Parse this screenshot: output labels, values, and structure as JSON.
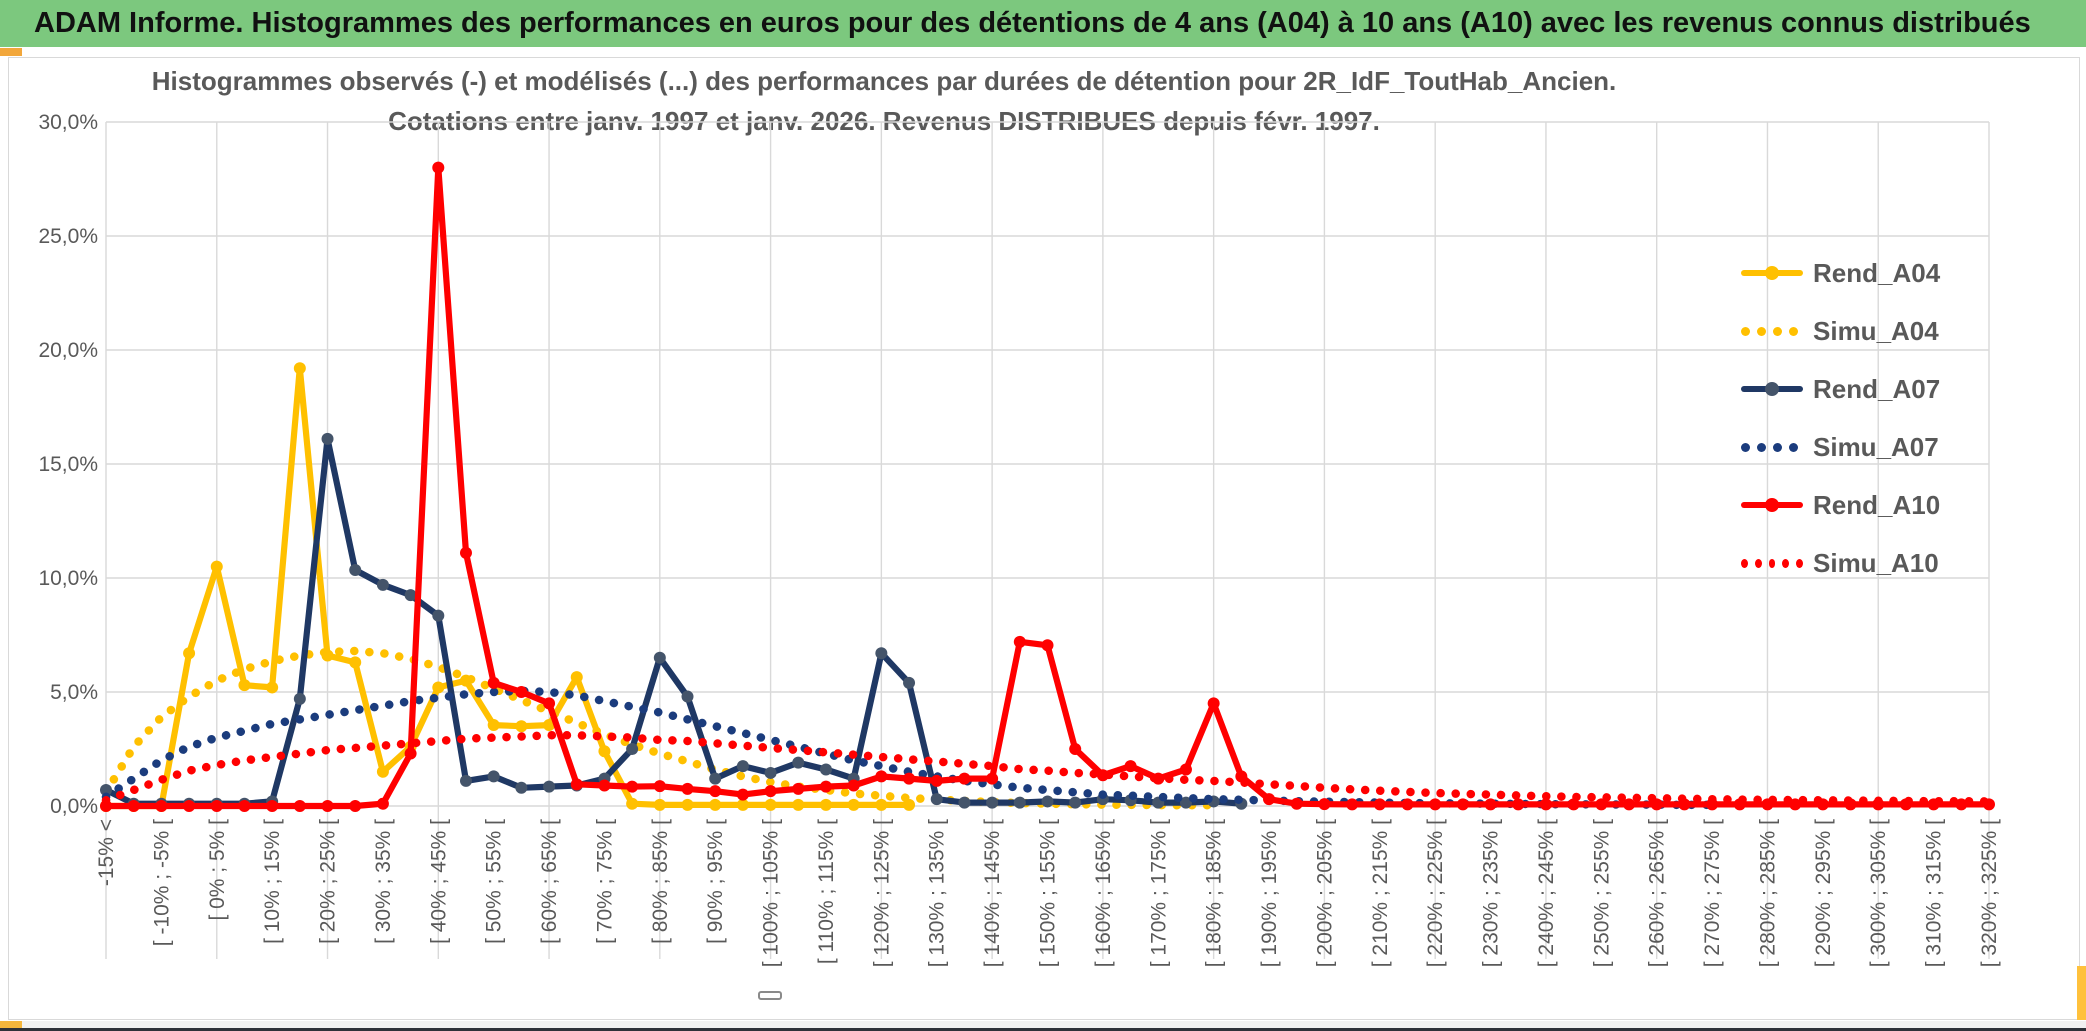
{
  "header": {
    "title": "ADAM Informe. Histogrammes des performances en euros pour des détentions de 4 ans (A04) à 10 ans (A10) avec les revenus connus distribués",
    "background": "#7cc87e"
  },
  "accents": {
    "color_left_top": "#f2a73b",
    "color_right_bottom": "#ffc13c",
    "color_left_bottom": "#f5b63c"
  },
  "chart_data": {
    "type": "line",
    "title_line1": "Histogrammes observés (-) et modélisés (...) des performances par durées de détention pour 2R_IdF_ToutHab_Ancien.",
    "title_line2": "Cotations entre janv. 1997 et janv. 2026. Revenus DISTRIBUES depuis févr. 1997.",
    "grid": true,
    "legend_position": "right",
    "ylim": [
      0,
      30
    ],
    "y_tick_labels": [
      "0,0%",
      "5,0%",
      "10,0%",
      "15,0%",
      "20,0%",
      "25,0%",
      "30,0%"
    ],
    "category_count": 69,
    "label_every": 2,
    "tick_labels": [
      "-15% <",
      "[ -10% ; -5% [",
      "[ 0% ; 5% [",
      "[ 10% ; 15% [",
      "[ 20% ; 25% [",
      "[ 30% ; 35% [",
      "[ 40% ; 45% [",
      "[ 50% ; 55% [",
      "[ 60% ; 65% [",
      "[ 70% ; 75% [",
      "[ 80% ; 85% [",
      "[ 90% ; 95% [",
      "[ 100% ; 105% [",
      "[ 110% ; 115% [",
      "[ 120% ; 125% [",
      "[ 130% ; 135% [",
      "[ 140% ; 145% [",
      "[ 150% ; 155% [",
      "[ 160% ; 165% [",
      "[ 170% ; 175% [",
      "[ 180% ; 185% [",
      "[ 190% ; 195% [",
      "[ 200% ; 205% [",
      "[ 210% ; 215% [",
      "[ 220% ; 225% [",
      "[ 230% ; 235% [",
      "[ 240% ; 245% [",
      "[ 250% ; 255% [",
      "[ 260% ; 265% [",
      "[ 270% ; 275% [",
      "[ 280% ; 285% [",
      "[ 290% ; 295% [",
      "[ 300% ; 305% [",
      "[ 310% ; 315% [",
      "[ 320% ; 325% ["
    ],
    "series": [
      {
        "name": "Rend_A04",
        "style": "solid",
        "color": "#ffc000",
        "marker_color": "#ffc000",
        "values": [
          0,
          0,
          0,
          6.7,
          10.5,
          5.3,
          5.2,
          19.2,
          6.6,
          6.3,
          1.5,
          2.6,
          5.2,
          5.5,
          3.55,
          3.5,
          3.55,
          5.65,
          2.4,
          0.1,
          0.05,
          0.05,
          0.05,
          0.05,
          0.05,
          0.05,
          0.05,
          0.05,
          0.05,
          0.05,
          null,
          null,
          null,
          null,
          null,
          null,
          null,
          null,
          null,
          null,
          null,
          null,
          null,
          null,
          null,
          null,
          null,
          null,
          null,
          null,
          null,
          null,
          null,
          null,
          null,
          null,
          null,
          null,
          null,
          null,
          null,
          null,
          null,
          null,
          null,
          null,
          null,
          null,
          null
        ]
      },
      {
        "name": "Simu_A04",
        "style": "dotted",
        "color": "#ffc000",
        "values": [
          0.6,
          2.6,
          3.9,
          4.8,
          5.5,
          6.0,
          6.35,
          6.6,
          6.75,
          6.8,
          6.7,
          6.45,
          6.1,
          5.65,
          5.15,
          4.65,
          4.15,
          3.65,
          3.15,
          2.7,
          2.3,
          1.95,
          1.6,
          1.3,
          1.05,
          0.85,
          0.7,
          0.55,
          0.45,
          0.35,
          0.28,
          0.22,
          0.17,
          0.13,
          0.1,
          0.08,
          0.06,
          0.05,
          0.04,
          0.03,
          0.03,
          null,
          null,
          null,
          null,
          null,
          null,
          null,
          null,
          null,
          null,
          null,
          null,
          null,
          null,
          null,
          null,
          null,
          null,
          null,
          null,
          null,
          null,
          null,
          null,
          null,
          null,
          null,
          null
        ]
      },
      {
        "name": "Rend_A07",
        "style": "solid",
        "color": "#1f3864",
        "marker_color": "#44546a",
        "values": [
          0.7,
          0.1,
          0.1,
          0.1,
          0.1,
          0.1,
          0.2,
          4.7,
          16.1,
          10.35,
          9.7,
          9.25,
          8.35,
          1.1,
          1.3,
          0.8,
          0.85,
          0.9,
          1.2,
          2.5,
          6.5,
          4.8,
          1.2,
          1.75,
          1.45,
          1.9,
          1.6,
          1.2,
          6.7,
          5.4,
          0.3,
          0.15,
          0.15,
          0.15,
          0.2,
          0.15,
          0.3,
          0.25,
          0.15,
          0.15,
          0.2,
          0.1,
          null,
          null,
          null,
          null,
          null,
          null,
          null,
          null,
          null,
          null,
          null,
          null,
          null,
          null,
          null,
          null,
          null,
          null,
          null,
          null,
          null,
          null,
          null,
          null,
          null,
          null,
          null
        ]
      },
      {
        "name": "Simu_A07",
        "style": "dotted",
        "color": "#1b3c7d",
        "values": [
          0.4,
          1.2,
          2.0,
          2.6,
          3.0,
          3.3,
          3.6,
          3.8,
          4.0,
          4.2,
          4.4,
          4.6,
          4.75,
          4.9,
          5.0,
          5.05,
          5.0,
          4.85,
          4.6,
          4.35,
          4.1,
          3.8,
          3.5,
          3.2,
          2.9,
          2.6,
          2.3,
          2.0,
          1.75,
          1.5,
          1.3,
          1.1,
          0.95,
          0.8,
          0.7,
          0.6,
          0.5,
          0.45,
          0.4,
          0.35,
          0.3,
          0.27,
          0.24,
          0.21,
          0.19,
          0.17,
          0.15,
          0.13,
          0.12,
          0.11,
          0.1,
          0.09,
          0.08,
          0.07,
          0.07,
          0.06,
          0.06,
          0.05,
          0.05,
          null,
          null,
          null,
          null,
          null,
          null,
          null,
          null,
          null,
          null
        ]
      },
      {
        "name": "Rend_A10",
        "style": "solid",
        "color": "#ff0000",
        "marker_color": "#ff0000",
        "values": [
          0,
          0,
          0,
          0,
          0,
          0,
          0,
          0,
          0,
          0,
          0.1,
          2.3,
          28.0,
          11.1,
          5.4,
          5.0,
          4.5,
          0.95,
          0.9,
          0.85,
          0.87,
          0.75,
          0.65,
          0.5,
          0.65,
          0.75,
          0.85,
          0.9,
          1.3,
          1.2,
          1.1,
          1.2,
          1.2,
          7.2,
          7.05,
          2.5,
          1.35,
          1.75,
          1.2,
          1.6,
          4.5,
          1.3,
          0.3,
          0.1,
          0.08,
          0.07,
          0.07,
          0.07,
          0.07,
          0.07,
          0.07,
          0.07,
          0.07,
          0.07,
          0.07,
          0.07,
          0.07,
          0.07,
          0.07,
          0.07,
          0.07,
          0.07,
          0.07,
          0.07,
          0.07,
          0.07,
          0.07,
          0.07,
          0.07
        ]
      },
      {
        "name": "Simu_A10",
        "style": "dotted",
        "color": "#ff0000",
        "values": [
          0.25,
          0.7,
          1.15,
          1.55,
          1.8,
          2.0,
          2.15,
          2.3,
          2.45,
          2.55,
          2.65,
          2.75,
          2.85,
          2.95,
          3.0,
          3.05,
          3.1,
          3.1,
          3.05,
          3.0,
          2.9,
          2.85,
          2.75,
          2.65,
          2.55,
          2.45,
          2.35,
          2.25,
          2.15,
          2.05,
          1.95,
          1.85,
          1.75,
          1.62,
          1.55,
          1.45,
          1.38,
          1.3,
          1.22,
          1.15,
          1.1,
          1.03,
          0.95,
          0.88,
          0.8,
          0.73,
          0.67,
          0.62,
          0.57,
          0.53,
          0.5,
          0.46,
          0.43,
          0.4,
          0.38,
          0.36,
          0.34,
          0.32,
          0.3,
          0.28,
          0.27,
          0.26,
          0.25,
          0.24,
          0.23,
          0.22,
          0.21,
          0.21,
          0.2
        ]
      }
    ],
    "colors": {
      "gridline": "#d9d9d9",
      "axis_text": "#595959",
      "title_text": "#595959"
    }
  }
}
